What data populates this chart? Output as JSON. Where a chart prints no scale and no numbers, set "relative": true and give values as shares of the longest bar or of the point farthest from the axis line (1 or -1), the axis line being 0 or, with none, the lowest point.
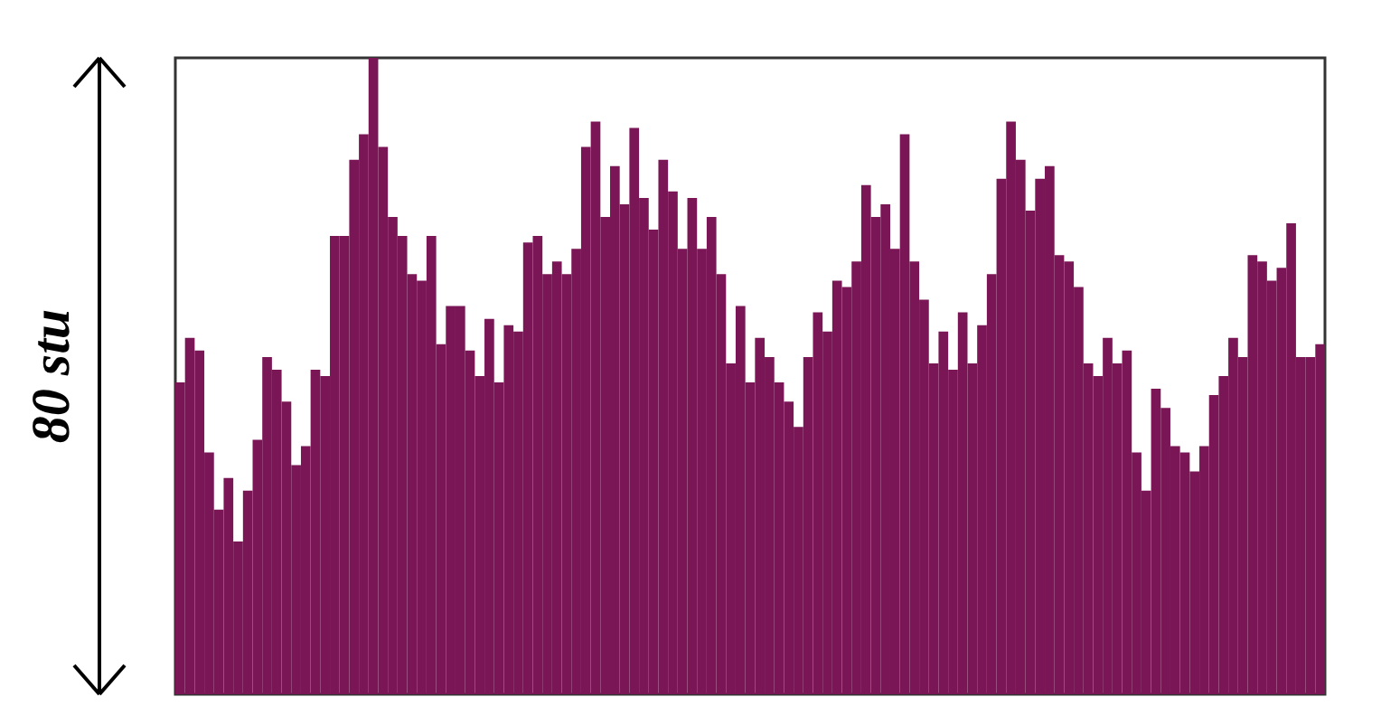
{
  "chart_data": {
    "type": "bar",
    "relative": true,
    "ylabel": "80 stu",
    "color": "#7a1656",
    "categories": [
      null,
      null,
      null,
      null,
      null,
      null,
      null,
      null,
      null,
      null,
      null,
      null,
      null,
      null,
      null,
      null,
      null,
      null,
      null,
      null,
      null,
      null,
      null,
      null,
      null,
      null,
      null,
      null,
      null,
      null,
      null,
      null,
      null,
      null,
      null,
      null,
      null,
      null,
      null,
      null,
      null,
      null,
      null,
      null,
      null,
      null,
      null,
      null,
      null,
      null,
      null,
      null,
      null,
      null,
      null,
      null,
      null,
      null,
      null,
      null,
      null,
      null,
      null,
      null,
      null,
      null,
      null,
      null,
      null,
      null,
      null,
      null,
      null,
      null,
      null,
      null,
      null,
      null,
      null,
      null,
      null,
      null,
      null,
      null,
      null,
      null,
      null,
      null,
      null,
      null,
      null,
      null,
      null,
      null,
      null,
      null,
      null,
      null,
      null,
      null,
      null,
      null,
      null,
      null,
      null,
      null,
      null,
      null,
      null,
      null,
      null,
      null,
      null,
      null,
      null,
      null,
      null,
      null,
      null
    ],
    "values": [
      0.49,
      0.56,
      0.54,
      0.38,
      0.29,
      0.34,
      0.24,
      0.32,
      0.4,
      0.53,
      0.51,
      0.46,
      0.36,
      0.39,
      0.51,
      0.5,
      0.72,
      0.72,
      0.84,
      0.88,
      1.0,
      0.86,
      0.75,
      0.72,
      0.66,
      0.65,
      0.72,
      0.55,
      0.61,
      0.61,
      0.54,
      0.5,
      0.59,
      0.49,
      0.58,
      0.57,
      0.71,
      0.72,
      0.66,
      0.68,
      0.66,
      0.7,
      0.86,
      0.9,
      0.75,
      0.83,
      0.77,
      0.89,
      0.78,
      0.73,
      0.84,
      0.79,
      0.7,
      0.78,
      0.7,
      0.75,
      0.66,
      0.52,
      0.61,
      0.49,
      0.56,
      0.53,
      0.49,
      0.46,
      0.42,
      0.53,
      0.6,
      0.57,
      0.65,
      0.64,
      0.68,
      0.8,
      0.75,
      0.77,
      0.7,
      0.88,
      0.68,
      0.62,
      0.52,
      0.57,
      0.51,
      0.6,
      0.52,
      0.58,
      0.66,
      0.81,
      0.9,
      0.84,
      0.76,
      0.81,
      0.83,
      0.69,
      0.68,
      0.64,
      0.52,
      0.5,
      0.56,
      0.52,
      0.54,
      0.38,
      0.32,
      0.48,
      0.45,
      0.39,
      0.38,
      0.35,
      0.39,
      0.47,
      0.5,
      0.56,
      0.53,
      0.69,
      0.68,
      0.65,
      0.67,
      0.74,
      0.53,
      0.53,
      0.55
    ]
  }
}
